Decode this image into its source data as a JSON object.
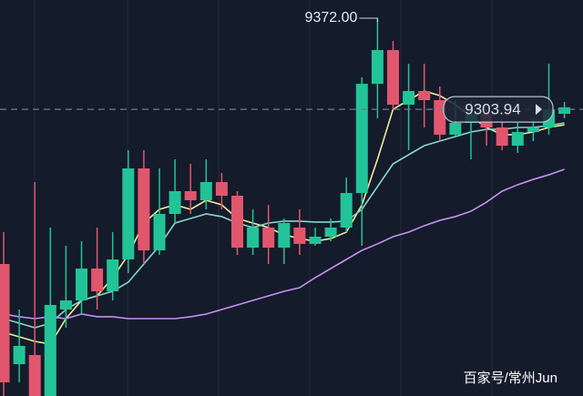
{
  "chart_data": {
    "type": "candlestick",
    "ylim": [
      9089.8,
      9385.6
    ],
    "up_color": "#22c497",
    "down_color": "#e2566d",
    "open": [
      9188.4,
      9113.6,
      9120.4,
      9089.8,
      9154.4,
      9161.2,
      9185.0,
      9168.0,
      9191.8,
      9259.8,
      9198.6,
      9225.8,
      9242.8,
      9236.0,
      9249.6,
      9239.4,
      9200.6,
      9215.6,
      9200.6,
      9215.6,
      9203.4,
      9208.8,
      9215.6,
      9241.4,
      9323.0,
      9348.2,
      9307.4,
      9317.6,
      9310.8,
      9285.0,
      9293.8,
      9300.6,
      9290.4,
      9276.8,
      9287.0,
      9290.4,
      9300.6
    ],
    "close": [
      9100.0,
      9127.2,
      9089.8,
      9157.8,
      9161.2,
      9185.0,
      9168.0,
      9191.8,
      9259.8,
      9198.6,
      9225.8,
      9242.8,
      9236.0,
      9249.6,
      9239.4,
      9200.6,
      9215.6,
      9200.6,
      9219.0,
      9203.4,
      9208.8,
      9215.6,
      9241.4,
      9323.0,
      9348.2,
      9307.4,
      9317.6,
      9310.8,
      9285.0,
      9293.8,
      9300.6,
      9290.4,
      9276.8,
      9287.0,
      9290.4,
      9304.0,
      9305.4
    ],
    "high": [
      9212.2,
      9154.4,
      9249.6,
      9215.6,
      9202.0,
      9205.4,
      9215.6,
      9212.2,
      9273.4,
      9273.4,
      9259.8,
      9266.6,
      9263.2,
      9266.6,
      9256.4,
      9242.8,
      9229.2,
      9232.6,
      9222.4,
      9229.2,
      9215.6,
      9222.4,
      9253.0,
      9327.8,
      9372.0,
      9355.0,
      9338.0,
      9338.0,
      9321.0,
      9310.8,
      9310.8,
      9304.0,
      9297.2,
      9293.8,
      9297.2,
      9338.0,
      9309.4
    ],
    "low": [
      9089.8,
      9100.0,
      9089.8,
      9089.8,
      9140.8,
      9151.0,
      9154.4,
      9161.2,
      9181.6,
      9188.4,
      9195.2,
      9219.0,
      9225.8,
      9229.2,
      9229.2,
      9195.2,
      9195.2,
      9188.4,
      9188.4,
      9195.2,
      9202.0,
      9205.4,
      9212.2,
      9202.0,
      9297.2,
      9304.0,
      9273.4,
      9290.4,
      9280.2,
      9283.6,
      9266.6,
      9276.8,
      9273.4,
      9271.4,
      9280.2,
      9285.0,
      9297.2
    ],
    "series": [
      {
        "color": "#f2ea9a",
        "values": [
          9137.4,
          9134.0,
          9130.6,
          9128.6,
          9147.6,
          9161.2,
          9164.6,
          9178.2,
          9195.2,
          9219.0,
          9229.2,
          9232.6,
          9229.2,
          9236.0,
          9232.6,
          9222.4,
          9219.0,
          9215.6,
          9210.2,
          9207.4,
          9205.4,
          9207.4,
          9212.2,
          9232.6,
          9266.6,
          9304.0,
          9310.8,
          9317.6,
          9314.2,
          9307.4,
          9298.6,
          9290.4,
          9285.0,
          9285.0,
          9287.0,
          9290.4,
          9292.4
        ]
      },
      {
        "color": "#86d8c3",
        "values": [
          9147.6,
          9144.2,
          9140.8,
          9144.2,
          9154.4,
          9161.2,
          9164.6,
          9168.0,
          9174.8,
          9188.4,
          9202.0,
          9219.0,
          9222.4,
          9225.8,
          9223.8,
          9219.0,
          9215.6,
          9219.0,
          9220.4,
          9220.4,
          9219.7,
          9219.7,
          9220.4,
          9229.2,
          9246.2,
          9263.2,
          9270.0,
          9276.8,
          9280.2,
          9283.6,
          9287.0,
          9289.0,
          9289.0,
          9290.4,
          9290.4,
          9291.8,
          9293.8
        ]
      },
      {
        "color": "#c690f0",
        "values": [
          9151.0,
          9149.0,
          9147.6,
          9149.0,
          9147.6,
          9151.0,
          9149.0,
          9149.0,
          9147.6,
          9147.6,
          9147.6,
          9147.6,
          9149.0,
          9151.0,
          9154.4,
          9157.8,
          9161.2,
          9164.6,
          9168.0,
          9170.7,
          9178.2,
          9185.0,
          9191.8,
          9198.6,
          9203.4,
          9208.8,
          9212.2,
          9217.0,
          9221.0,
          9223.8,
          9227.8,
          9234.6,
          9242.8,
          9247.6,
          9251.6,
          9255.0,
          9259.1
        ]
      }
    ],
    "high_annotation": {
      "value": 9372,
      "label": "9372.00"
    },
    "last_price": 9303.94,
    "watermark": "百家号/常州Jun"
  }
}
